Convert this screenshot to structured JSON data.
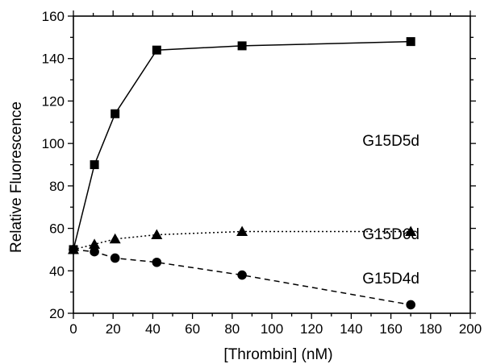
{
  "chart_data": {
    "type": "line",
    "title": "",
    "xlabel": "[Thrombin] (nM)",
    "ylabel": "Relative Fluorescence",
    "xlim": [
      0,
      200
    ],
    "ylim": [
      20,
      160
    ],
    "xticks": [
      0,
      20,
      40,
      60,
      80,
      100,
      120,
      140,
      160,
      180,
      200
    ],
    "yticks": [
      20,
      40,
      60,
      80,
      100,
      120,
      140,
      160
    ],
    "x_tick_labels": [
      "0",
      "20",
      "40",
      "60",
      "80",
      "100",
      "120",
      "140",
      "160",
      "180",
      "200"
    ],
    "y_tick_labels": [
      "20",
      "40",
      "60",
      "80",
      "100",
      "120",
      "140",
      "160"
    ],
    "grid": false,
    "legend": "none",
    "series": [
      {
        "name": "G15D5d",
        "marker": "square",
        "line_style": "solid",
        "x": [
          0,
          10.6,
          21,
          42,
          85,
          170
        ],
        "y": [
          50,
          90,
          114,
          144,
          146,
          148
        ]
      },
      {
        "name": "G15D6d",
        "marker": "triangle",
        "line_style": "dotted",
        "x": [
          0,
          10.6,
          21,
          42,
          85,
          170
        ],
        "y": [
          50,
          52.5,
          55,
          57,
          58.5,
          58.5
        ]
      },
      {
        "name": "G15D4d",
        "marker": "circle",
        "line_style": "dashed",
        "x": [
          0,
          10.6,
          21,
          42,
          85,
          170
        ],
        "y": [
          50,
          49,
          46,
          44,
          38,
          24
        ]
      }
    ]
  }
}
